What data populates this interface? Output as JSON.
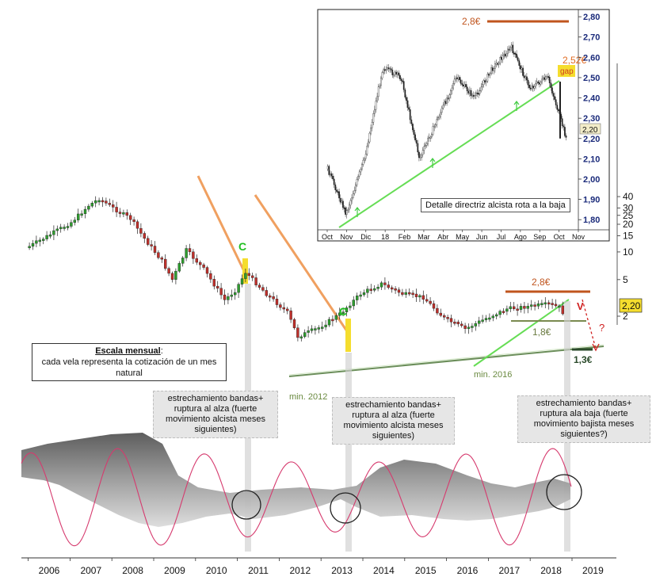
{
  "chart_data": [
    {
      "type": "candlestick",
      "title": "",
      "x_axis": {
        "ticks": [
          "2006",
          "2007",
          "2008",
          "2009",
          "2010",
          "2011",
          "2012",
          "2013",
          "2014",
          "2015",
          "2016",
          "2017",
          "2018",
          "2019"
        ]
      },
      "y_axis": {
        "scale": "log",
        "ticks": [
          "40",
          "30",
          "25",
          "20",
          "15",
          "10",
          "5",
          "2"
        ],
        "current_price_label": "2,20"
      },
      "series_close_estimated": [
        {
          "t": "2006-01",
          "v": 11.5
        },
        {
          "t": "2006-07",
          "v": 15.5
        },
        {
          "t": "2007-01",
          "v": 21
        },
        {
          "t": "2007-06",
          "v": 32
        },
        {
          "t": "2007-09",
          "v": 38
        },
        {
          "t": "2008-01",
          "v": 30
        },
        {
          "t": "2008-06",
          "v": 23
        },
        {
          "t": "2008-10",
          "v": 14
        },
        {
          "t": "2009-03",
          "v": 8
        },
        {
          "t": "2009-06",
          "v": 5
        },
        {
          "t": "2009-10",
          "v": 10.5
        },
        {
          "t": "2010-03",
          "v": 6.5
        },
        {
          "t": "2010-09",
          "v": 3
        },
        {
          "t": "2010-12",
          "v": 3.8
        },
        {
          "t": "2011-03",
          "v": 6
        },
        {
          "t": "2011-09",
          "v": 3.5
        },
        {
          "t": "2012-03",
          "v": 2.2
        },
        {
          "t": "2012-06",
          "v": 1.2
        },
        {
          "t": "2012-12",
          "v": 1.5
        },
        {
          "t": "2013-06",
          "v": 2.1
        },
        {
          "t": "2013-12",
          "v": 3.5
        },
        {
          "t": "2014-06",
          "v": 4.5
        },
        {
          "t": "2014-12",
          "v": 3.5
        },
        {
          "t": "2015-06",
          "v": 3.2
        },
        {
          "t": "2015-12",
          "v": 1.9
        },
        {
          "t": "2016-06",
          "v": 1.45
        },
        {
          "t": "2016-12",
          "v": 1.9
        },
        {
          "t": "2017-06",
          "v": 2.4
        },
        {
          "t": "2017-12",
          "v": 2.55
        },
        {
          "t": "2018-06",
          "v": 2.7
        },
        {
          "t": "2018-09",
          "v": 2.5
        },
        {
          "t": "2018-10",
          "v": 2.2
        }
      ],
      "annotations": {
        "c1": "C",
        "c2": "C",
        "level_top": "2,8€",
        "level_mid": "1,8€",
        "level_low": "1,3€",
        "v_mark": "V",
        "question": "?",
        "min_2012": "min. 2012",
        "min_2016": "min. 2016",
        "price_tag": "2,20"
      },
      "indicator": {
        "type": "bollinger_bandwidth_with_oscillator",
        "oscillator_color": "#d63a6e",
        "band_color": "#8a8a8a"
      }
    },
    {
      "type": "candlestick",
      "title": "",
      "x_axis": {
        "ticks": [
          "Oct",
          "Nov",
          "Dic",
          "18",
          "Feb",
          "Mar",
          "Abr",
          "May",
          "Jun",
          "Jul",
          "Ago",
          "Sep",
          "Oct",
          "Nov"
        ]
      },
      "y_axis": {
        "range": [
          1.75,
          2.82
        ],
        "ticks": [
          "2,80",
          "2,70",
          "2,60",
          "2,50",
          "2,40",
          "2,30",
          "2,20",
          "2,10",
          "2,00",
          "1,90",
          "1,80"
        ]
      },
      "series_close_estimated": [
        {
          "t": "Oct",
          "v": 2.05
        },
        {
          "t": "Nov",
          "v": 1.83
        },
        {
          "t": "Dic",
          "v": 2.1
        },
        {
          "t": "18",
          "v": 2.55
        },
        {
          "t": "Feb",
          "v": 2.5
        },
        {
          "t": "Mar",
          "v": 2.1
        },
        {
          "t": "Abr",
          "v": 2.3
        },
        {
          "t": "May",
          "v": 2.5
        },
        {
          "t": "Jun",
          "v": 2.4
        },
        {
          "t": "Jul",
          "v": 2.55
        },
        {
          "t": "Ago",
          "v": 2.65
        },
        {
          "t": "Sep",
          "v": 2.45
        },
        {
          "t": "Oct",
          "v": 2.5
        },
        {
          "t": "Oct",
          "v": 2.2
        }
      ],
      "annotations": {
        "level_top": "2,8€",
        "price_gap": "2,52€",
        "gap": "gap",
        "price_tag": "2,20",
        "caption": "Detalle directriz alcista rota a la baja"
      }
    }
  ],
  "notes": {
    "scale_title": "Escala mensual",
    "scale_colon": ":",
    "scale_text": "cada vela representa la cotización de un mes natural",
    "box1": "estrechamiento bandas+ ruptura al alza (fuerte movimiento alcista meses siguientes)",
    "box2": "estrechamiento bandas+ ruptura al alza (fuerte movimiento alcista meses siguientes)",
    "box3": "estrechamiento bandas+ ruptura ala baja (fuerte movimiento bajista meses siguientes?)"
  },
  "colors": {
    "bull": "#2e9e2e",
    "bear": "#c0302b",
    "resistance": "#c0551e",
    "trend_up": "#66dd55",
    "trend_down": "#f0a060",
    "highlight": "#f5dd2e"
  }
}
